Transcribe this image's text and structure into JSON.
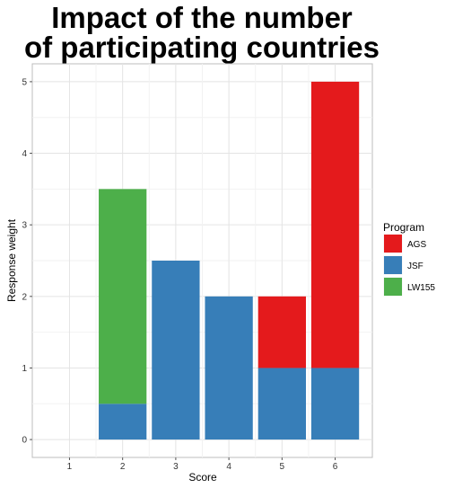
{
  "chart_data": {
    "type": "bar",
    "stacked": true,
    "title_lines": [
      "Impact of the number",
      "of participating countries"
    ],
    "xlabel": "Score",
    "ylabel": "Response weight",
    "x_ticks": [
      "1",
      "2",
      "3",
      "4",
      "5",
      "6"
    ],
    "y_ticks": [
      "0",
      "1",
      "2",
      "3",
      "4",
      "5"
    ],
    "xlim": [
      0.3,
      6.7
    ],
    "ylim": [
      -0.25,
      5.25
    ],
    "grid": true,
    "legend": {
      "title": "Program",
      "position": "right",
      "entries": [
        {
          "name": "AGS",
          "color": "#E41A1C"
        },
        {
          "name": "JSF",
          "color": "#377EB8"
        },
        {
          "name": "LW155",
          "color": "#4DAF4A"
        }
      ]
    },
    "categories": [
      "1",
      "2",
      "3",
      "4",
      "5",
      "6"
    ],
    "series": [
      {
        "name": "JSF",
        "color": "#377EB8",
        "values": [
          0,
          0.5,
          2.5,
          2,
          1,
          1
        ]
      },
      {
        "name": "AGS",
        "color": "#E41A1C",
        "values": [
          0,
          0,
          0,
          0,
          1,
          4
        ]
      },
      {
        "name": "LW155",
        "color": "#4DAF4A",
        "values": [
          0,
          3,
          0,
          0,
          0,
          0
        ]
      }
    ]
  }
}
